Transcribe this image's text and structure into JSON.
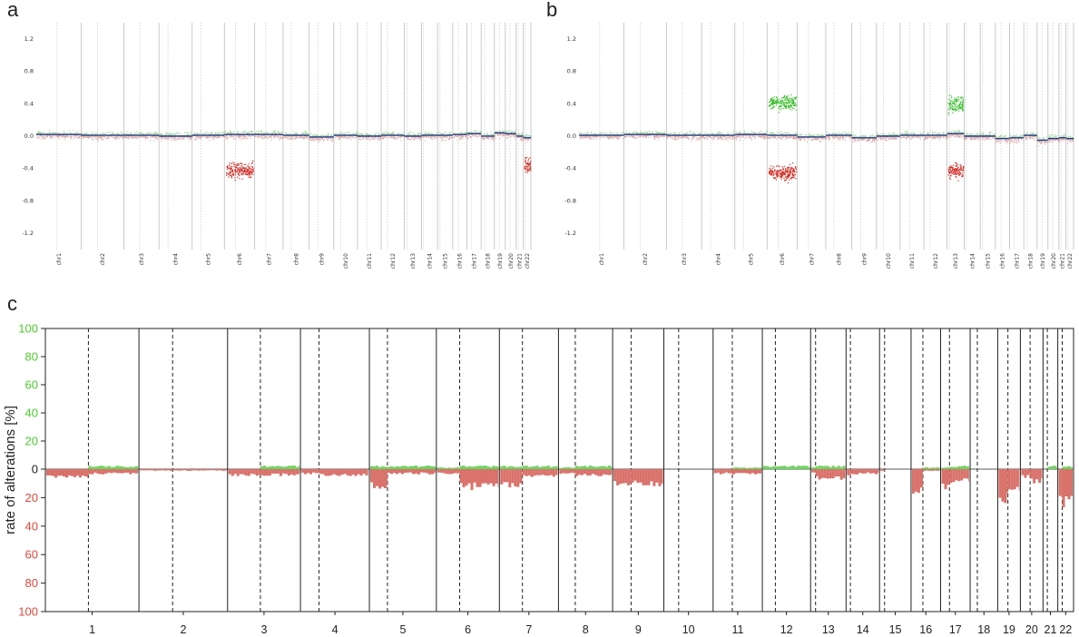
{
  "panels": {
    "a": "a",
    "b": "b",
    "c": "c"
  },
  "colors": {
    "gain": "#6fd35f",
    "loss": "#d9726b",
    "gain_label": "#4ccc2c",
    "loss_label": "#e0473c",
    "segment": "#2b3a8f"
  },
  "chart_data": [
    {
      "id": "a",
      "type": "scatter",
      "title": "",
      "ylim": [
        -1.4,
        1.4
      ],
      "yticks": [
        "1.2",
        "0.8",
        "0.4",
        "0.0",
        "-0.4",
        "-0.8",
        "-1.2"
      ],
      "ytick_values": [
        1.2,
        0.8,
        0.4,
        0.0,
        -0.4,
        -0.8,
        -1.2
      ],
      "chromosomes": [
        "chr1",
        "chr2",
        "chr3",
        "chr4",
        "chr5",
        "chr6",
        "chr7",
        "chr8",
        "chr9",
        "chr10",
        "chr11",
        "chr12",
        "chr13",
        "chr14",
        "chr15",
        "chr16",
        "chr17",
        "chr18",
        "chr19",
        "chr20",
        "chr21",
        "chr22"
      ],
      "segments": [
        0.02,
        0.01,
        0.01,
        0.0,
        0.01,
        0.02,
        0.02,
        0.01,
        -0.01,
        0.01,
        0.0,
        0.01,
        0.0,
        0.01,
        0.01,
        0.02,
        0.03,
        0.0,
        0.04,
        0.03,
        0.0,
        -0.02
      ],
      "focal_losses": [
        {
          "chr": "chr6",
          "value": -0.42
        },
        {
          "chr": "chr22",
          "value": -0.35
        }
      ],
      "focal_gains": []
    },
    {
      "id": "b",
      "type": "scatter",
      "title": "",
      "ylim": [
        -1.4,
        1.4
      ],
      "yticks": [
        "1.2",
        "0.8",
        "0.4",
        "0.0",
        "-0.4",
        "-0.8",
        "-1.2"
      ],
      "ytick_values": [
        1.2,
        0.8,
        0.4,
        0.0,
        -0.4,
        -0.8,
        -1.2
      ],
      "chromosomes": [
        "chr1",
        "chr2",
        "chr3",
        "chr4",
        "chr5",
        "chr6",
        "chr7",
        "chr8",
        "chr9",
        "chr10",
        "chr11",
        "chr12",
        "chr13",
        "chr14",
        "chr15",
        "chr16",
        "chr17",
        "chr18",
        "chr19",
        "chr20",
        "chr21",
        "chr22"
      ],
      "segments": [
        0.01,
        0.02,
        0.01,
        0.01,
        0.02,
        0.01,
        -0.01,
        0.01,
        -0.02,
        0.0,
        0.01,
        0.01,
        0.03,
        0.0,
        0.0,
        -0.03,
        -0.02,
        0.01,
        -0.05,
        -0.03,
        -0.02,
        -0.03
      ],
      "focal_gains": [
        {
          "chr": "chr6",
          "value": 0.42
        },
        {
          "chr": "chr13",
          "value": 0.4
        }
      ],
      "focal_losses": [
        {
          "chr": "chr6",
          "value": -0.45
        },
        {
          "chr": "chr13",
          "value": -0.42
        }
      ]
    },
    {
      "id": "c",
      "type": "bar",
      "title": "",
      "ylabel": "rate of alterations [%]",
      "gain_yticks": [
        "100",
        "80",
        "60",
        "40",
        "20"
      ],
      "zero_tick": "0",
      "loss_yticks": [
        "20",
        "40",
        "60",
        "80",
        "100"
      ],
      "gain_ylim": [
        0,
        100
      ],
      "loss_ylim": [
        0,
        100
      ],
      "categories": [
        "1",
        "2",
        "3",
        "4",
        "5",
        "6",
        "7",
        "8",
        "9",
        "10",
        "11",
        "12",
        "13",
        "14",
        "15",
        "16",
        "17",
        "18",
        "19",
        "20",
        "21",
        "22"
      ],
      "gain_p": [
        0,
        0,
        0,
        0,
        2,
        1,
        2,
        1,
        0,
        0,
        0,
        2,
        1,
        0,
        0,
        0,
        1,
        0,
        0,
        0,
        0,
        0
      ],
      "gain_q": [
        2,
        0,
        2,
        0,
        2,
        2,
        2,
        2,
        0,
        0,
        1,
        2,
        2,
        0,
        0,
        1,
        2,
        0,
        0,
        0,
        2,
        2
      ],
      "loss_p": [
        5,
        1,
        4,
        3,
        12,
        3,
        12,
        3,
        10,
        0,
        3,
        0,
        3,
        4,
        1,
        15,
        12,
        0,
        20,
        5,
        0,
        20
      ],
      "loss_q": [
        3,
        1,
        4,
        4,
        3,
        12,
        5,
        4,
        10,
        0,
        3,
        0,
        6,
        3,
        0,
        1,
        8,
        0,
        14,
        8,
        0,
        25
      ]
    }
  ]
}
